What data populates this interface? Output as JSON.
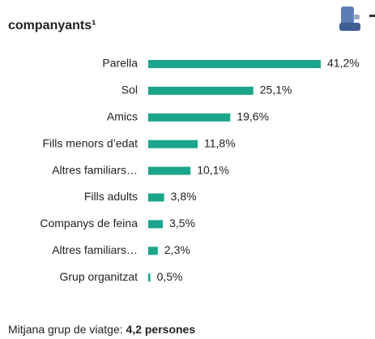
{
  "chart_data": {
    "type": "bar",
    "orientation": "horizontal",
    "title": "companyants¹",
    "categories": [
      "Parella",
      "Sol",
      "Amics",
      "Fills menors d’edat",
      "Altres familiars…",
      "Fills adults",
      "Companys de feina",
      "Altres familiars…",
      "Grup organitzat"
    ],
    "values": [
      41.2,
      25.1,
      19.6,
      11.8,
      10.1,
      3.8,
      3.5,
      2.3,
      0.5
    ],
    "value_labels": [
      "41,2%",
      "25,1%",
      "19,6%",
      "11,8%",
      "10,1%",
      "3,8%",
      "3,5%",
      "2,3%",
      "0,5%"
    ],
    "color": "#1ba58a"
  },
  "footer": {
    "text": "Mitjana grup de viatge: ",
    "value": "4,2 persones"
  }
}
